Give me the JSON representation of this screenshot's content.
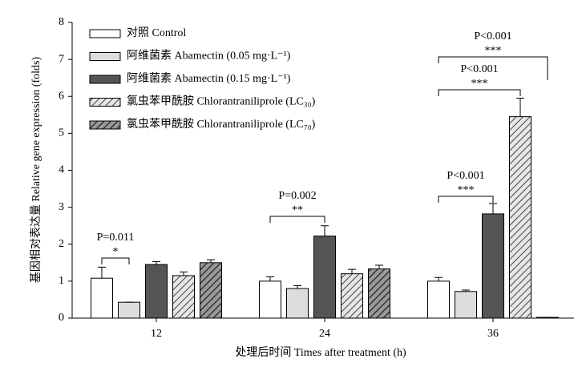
{
  "chart_data": {
    "type": "bar",
    "xlabel": "处理后时间 Times after treatment (h)",
    "ylabel": "基因相对表达量 Relative gene expression (folds)",
    "categories": [
      "12",
      "24",
      "36"
    ],
    "series": [
      {
        "name": "对照 Control",
        "color": "#ffffff",
        "hatch": false,
        "values": [
          1.08,
          1.0,
          1.0
        ],
        "errors": [
          0.3,
          0.12,
          0.1
        ]
      },
      {
        "name": "阿维菌素 Abamectin (0.05 mg·L⁻¹)",
        "color": "#dddddd",
        "hatch": false,
        "values": [
          0.43,
          0.8,
          0.72
        ],
        "errors": [
          0,
          0.08,
          0.04
        ]
      },
      {
        "name": "阿维菌素 Abamectin (0.15 mg·L⁻¹)",
        "color": "#555555",
        "hatch": false,
        "values": [
          1.45,
          2.22,
          2.82
        ],
        "errors": [
          0.08,
          0.28,
          0.28
        ]
      },
      {
        "name": "氯虫苯甲酰胺 Chlorantraniliprole (LC₃₀)",
        "color": "#e6e6e6",
        "hatch": true,
        "values": [
          1.15,
          1.2,
          5.45
        ],
        "errors": [
          0.1,
          0.12,
          0.5
        ]
      },
      {
        "name": "氯虫苯甲酰胺 Chlorantraniliprole (LC₇₀)",
        "color": "#777777",
        "hatch": true,
        "values": [
          1.5,
          1.33,
          0.02
        ],
        "errors": [
          0.08,
          0.1,
          0
        ]
      }
    ],
    "ylim": [
      0,
      8
    ],
    "yticks": [
      0,
      1,
      2,
      3,
      4,
      5,
      6,
      7,
      8
    ],
    "annotations": [
      {
        "label": "P=0.011",
        "stars": "*"
      },
      {
        "label": "P=0.002",
        "stars": "**"
      },
      {
        "label": "P<0.001",
        "stars": "***"
      },
      {
        "label": "P<0.001",
        "stars": "***"
      },
      {
        "label": "P<0.001",
        "stars": "***"
      }
    ]
  }
}
